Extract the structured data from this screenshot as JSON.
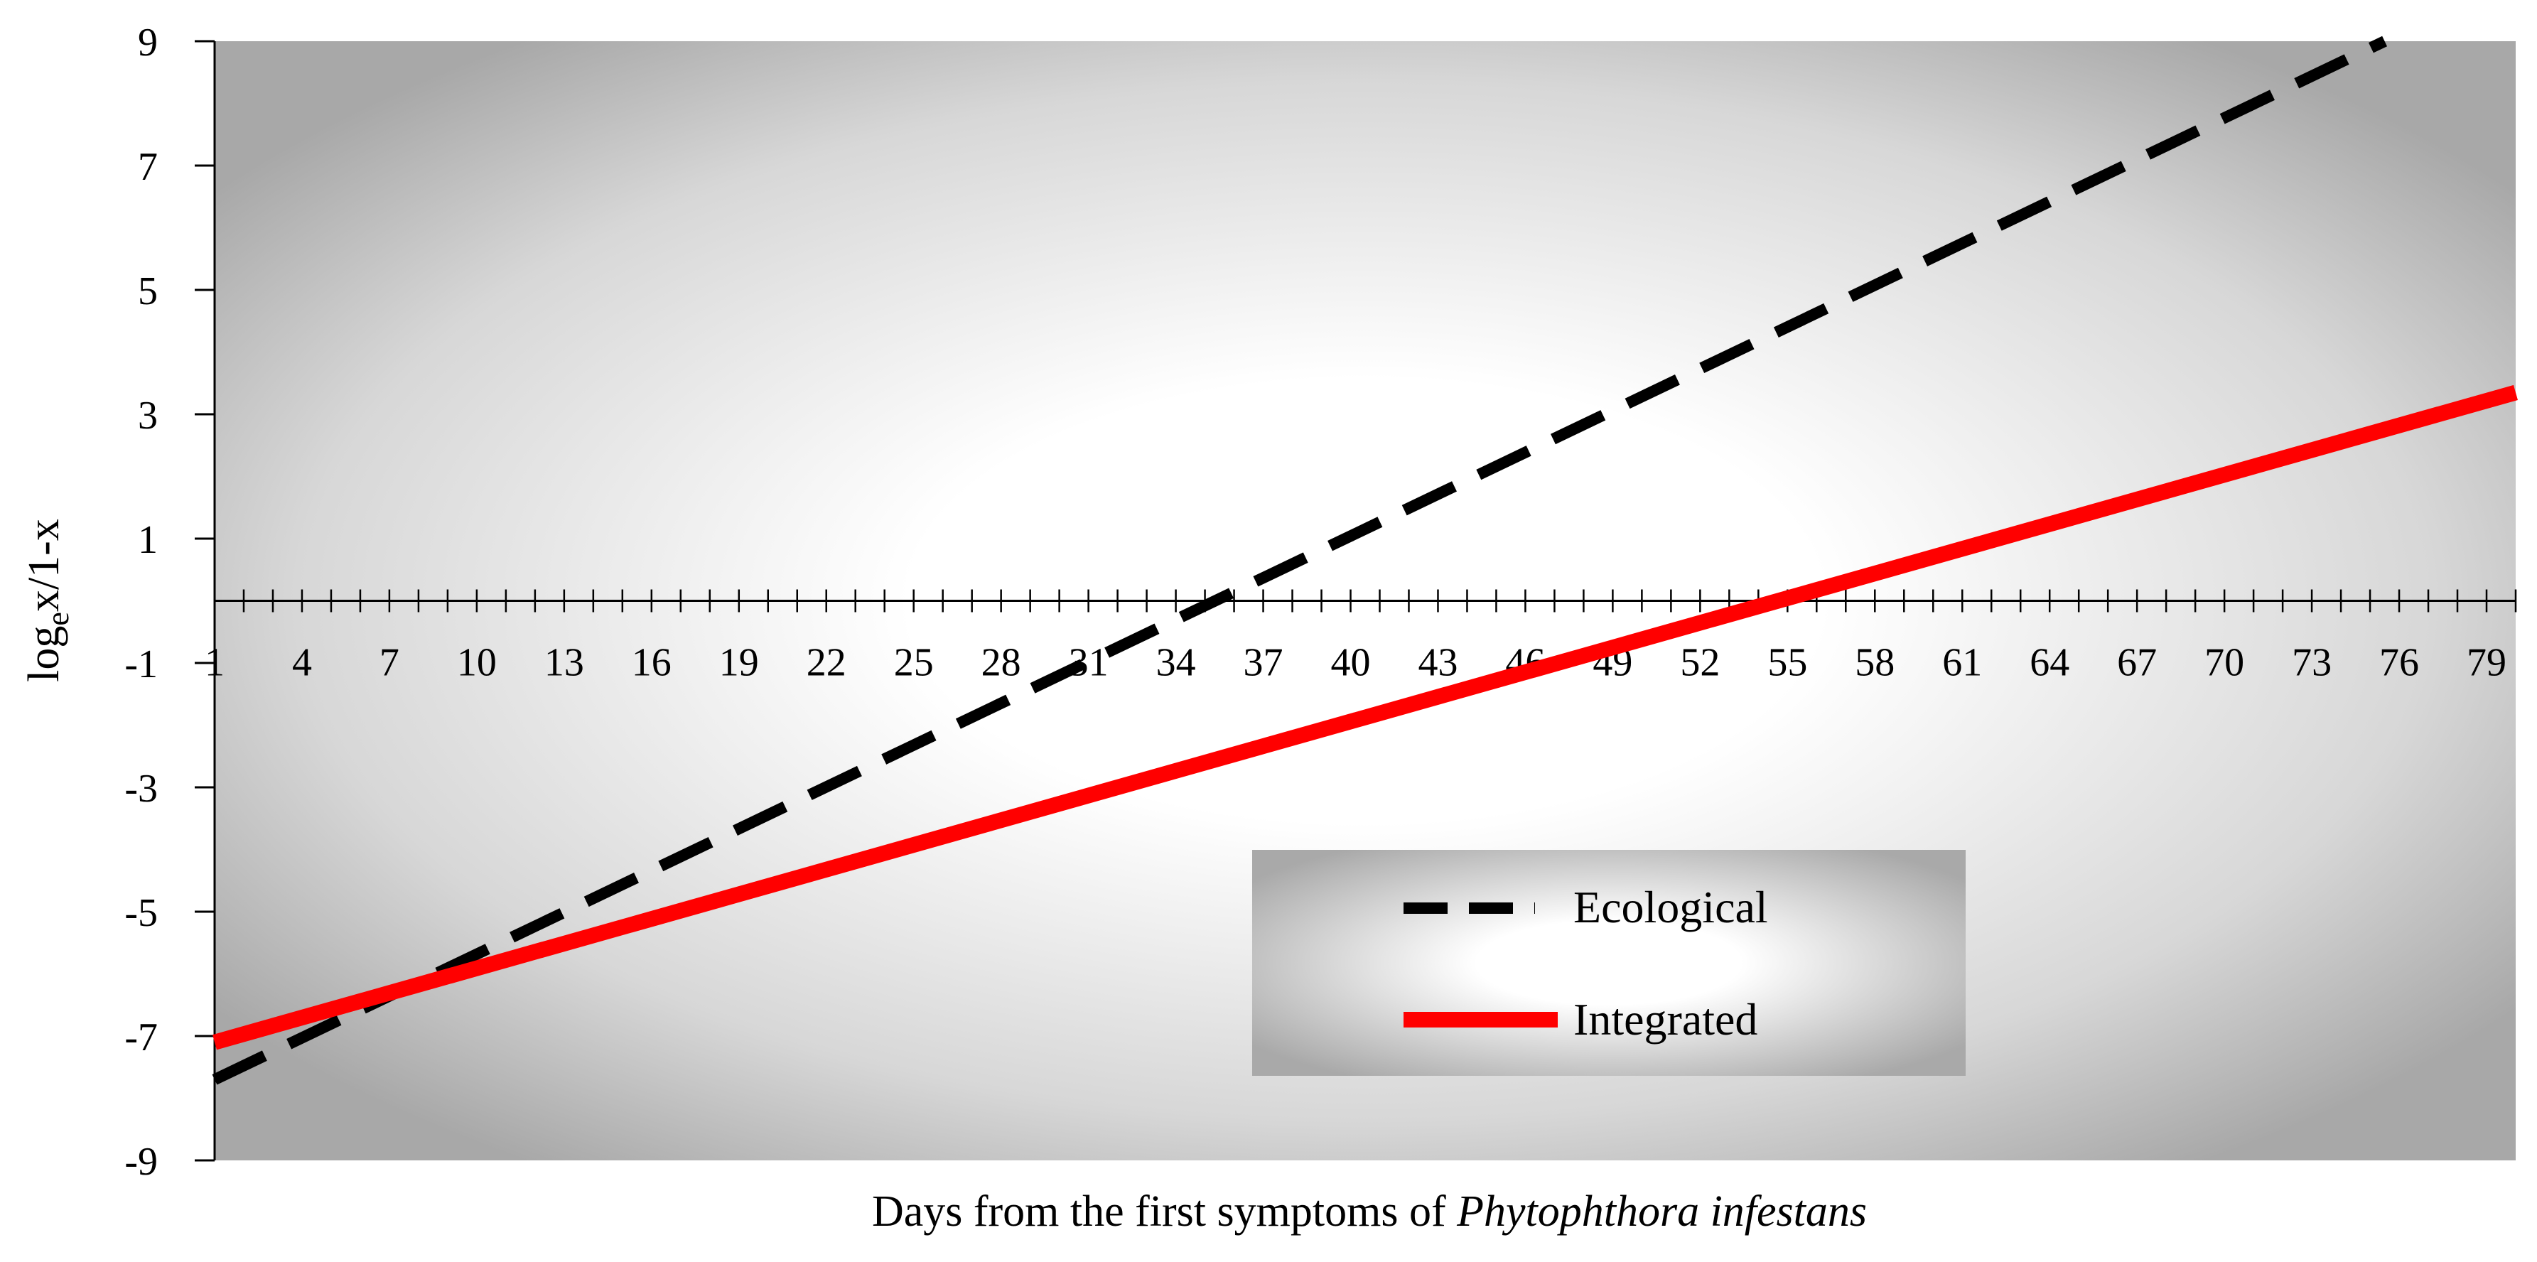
{
  "chart_data": {
    "type": "line",
    "ylabel": {
      "main": "log",
      "sub": "e",
      "rest": "x/1-x"
    },
    "xlabel": {
      "prefix": "Days from the first symptoms of ",
      "italic": "Phytophthora infestans"
    },
    "ylim": [
      -9,
      9
    ],
    "xlim": [
      1,
      80
    ],
    "y_ticks": [
      -9,
      -7,
      -5,
      -3,
      -1,
      1,
      3,
      5,
      7,
      9
    ],
    "x_tick_labels": [
      1,
      4,
      7,
      10,
      13,
      16,
      19,
      22,
      25,
      28,
      31,
      34,
      37,
      40,
      43,
      46,
      49,
      52,
      55,
      58,
      61,
      64,
      67,
      70,
      73,
      76,
      79
    ],
    "x_minor_ticks": {
      "from": 1,
      "to": 80,
      "step": 1
    },
    "background": "radial gradient, white center to grey edges",
    "legend_position": "bottom-right",
    "series": [
      {
        "name": "Ecological",
        "style": "dashed",
        "color": "#000000",
        "x": [
          1,
          75.5
        ],
        "y": [
          -7.7,
          9.0
        ]
      },
      {
        "name": "Integrated",
        "style": "solid",
        "color": "#ff0000",
        "x": [
          1,
          80
        ],
        "y": [
          -7.1,
          3.35
        ]
      }
    ]
  }
}
